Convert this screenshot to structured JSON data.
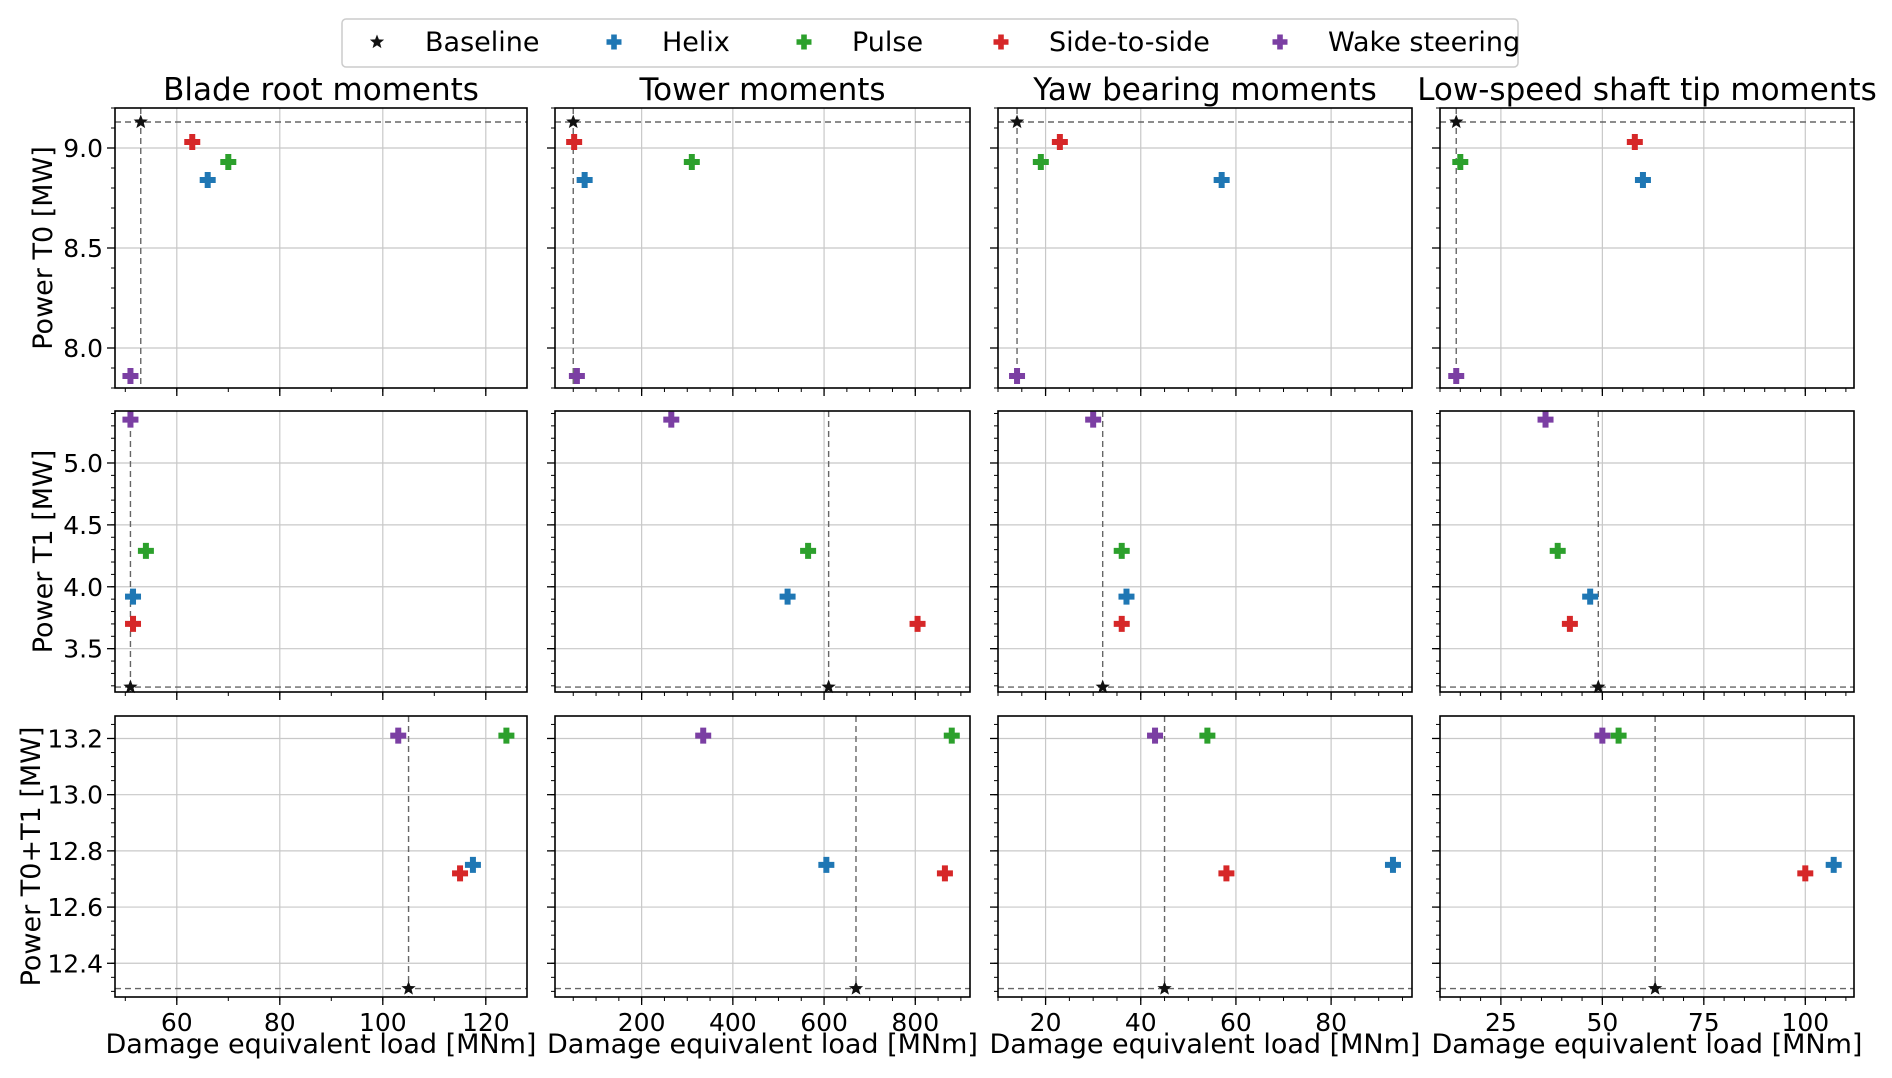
{
  "chart_data": {
    "type": "scatter",
    "legend": {
      "placement": "top-center",
      "entries": [
        {
          "name": "Baseline",
          "marker": "star",
          "color": "#111111"
        },
        {
          "name": "Helix",
          "marker": "plus",
          "color": "#1f77b4"
        },
        {
          "name": "Pulse",
          "marker": "plus",
          "color": "#2ca02c"
        },
        {
          "name": "Side-to-side",
          "marker": "plus",
          "color": "#d62728"
        },
        {
          "name": "Wake steering",
          "marker": "plus",
          "color": "#7b3fa3"
        }
      ]
    },
    "columns": [
      {
        "title": "Blade root moments",
        "xlabel": "Damage equivalent load [MNm]",
        "xlim": [
          48,
          128
        ],
        "xticks": [
          60,
          80,
          100,
          120
        ],
        "xminor": 10
      },
      {
        "title": "Tower moments",
        "xlabel": "Damage equivalent load [MNm]",
        "xlim": [
          10,
          920
        ],
        "xticks": [
          200,
          400,
          600,
          800
        ],
        "xminor": 50
      },
      {
        "title": "Yaw bearing moments",
        "xlabel": "Damage equivalent load [MNm]",
        "xlim": [
          10,
          97
        ],
        "xticks": [
          20,
          40,
          60,
          80
        ],
        "xminor": 5
      },
      {
        "title": "Low-speed shaft tip moments",
        "xlabel": "Damage equivalent load [MNm]",
        "xlim": [
          10,
          112
        ],
        "xticks": [
          25,
          50,
          75,
          100
        ],
        "xminor": 5
      }
    ],
    "rows": [
      {
        "ylabel": "Power T0 [MW]",
        "ylim": [
          7.8,
          9.2
        ],
        "yticks": [
          8.0,
          8.5,
          9.0
        ],
        "ytick_labels": [
          "8.0",
          "8.5",
          "9.0"
        ],
        "yminor": 0.1
      },
      {
        "ylabel": "Power T1 [MW]",
        "ylim": [
          3.15,
          5.42
        ],
        "yticks": [
          3.5,
          4.0,
          4.5,
          5.0
        ],
        "ytick_labels": [
          "3.5",
          "4.0",
          "4.5",
          "5.0"
        ],
        "yminor": 0.1
      },
      {
        "ylabel": "Power T0+T1 [MW]",
        "ylim": [
          12.28,
          13.28
        ],
        "yticks": [
          12.4,
          12.6,
          12.8,
          13.0,
          13.2
        ],
        "ytick_labels": [
          "12.4",
          "12.6",
          "12.8",
          "13.0",
          "13.2"
        ],
        "yminor": 0.05
      }
    ],
    "panels": [
      {
        "row": 0,
        "col": 0,
        "baseline": {
          "x": 53,
          "y": 9.13
        },
        "points": [
          {
            "series": "Helix",
            "x": 66,
            "y": 8.84
          },
          {
            "series": "Pulse",
            "x": 70,
            "y": 8.93
          },
          {
            "series": "Side-to-side",
            "x": 63,
            "y": 9.03
          },
          {
            "series": "Wake steering",
            "x": 51,
            "y": 7.86
          }
        ]
      },
      {
        "row": 0,
        "col": 1,
        "baseline": {
          "x": 50,
          "y": 9.13
        },
        "points": [
          {
            "series": "Helix",
            "x": 75,
            "y": 8.84
          },
          {
            "series": "Pulse",
            "x": 310,
            "y": 8.93
          },
          {
            "series": "Side-to-side",
            "x": 52,
            "y": 9.03
          },
          {
            "series": "Wake steering",
            "x": 58,
            "y": 7.86
          }
        ]
      },
      {
        "row": 0,
        "col": 2,
        "baseline": {
          "x": 14,
          "y": 9.13
        },
        "points": [
          {
            "series": "Helix",
            "x": 57,
            "y": 8.84
          },
          {
            "series": "Pulse",
            "x": 19,
            "y": 8.93
          },
          {
            "series": "Side-to-side",
            "x": 23,
            "y": 9.03
          },
          {
            "series": "Wake steering",
            "x": 14,
            "y": 7.86
          }
        ]
      },
      {
        "row": 0,
        "col": 3,
        "baseline": {
          "x": 14,
          "y": 9.13
        },
        "points": [
          {
            "series": "Helix",
            "x": 60,
            "y": 8.84
          },
          {
            "series": "Pulse",
            "x": 15,
            "y": 8.93
          },
          {
            "series": "Side-to-side",
            "x": 58,
            "y": 9.03
          },
          {
            "series": "Wake steering",
            "x": 14,
            "y": 7.86
          }
        ]
      },
      {
        "row": 1,
        "col": 0,
        "baseline": {
          "x": 51,
          "y": 3.19
        },
        "points": [
          {
            "series": "Helix",
            "x": 51.5,
            "y": 3.92
          },
          {
            "series": "Pulse",
            "x": 54,
            "y": 4.29
          },
          {
            "series": "Side-to-side",
            "x": 51.5,
            "y": 3.7
          },
          {
            "series": "Wake steering",
            "x": 51,
            "y": 5.35
          }
        ]
      },
      {
        "row": 1,
        "col": 1,
        "baseline": {
          "x": 610,
          "y": 3.19
        },
        "points": [
          {
            "series": "Helix",
            "x": 520,
            "y": 3.92
          },
          {
            "series": "Pulse",
            "x": 565,
            "y": 4.29
          },
          {
            "series": "Side-to-side",
            "x": 805,
            "y": 3.7
          },
          {
            "series": "Wake steering",
            "x": 265,
            "y": 5.35
          }
        ]
      },
      {
        "row": 1,
        "col": 2,
        "baseline": {
          "x": 32,
          "y": 3.19
        },
        "points": [
          {
            "series": "Helix",
            "x": 37,
            "y": 3.92
          },
          {
            "series": "Pulse",
            "x": 36,
            "y": 4.29
          },
          {
            "series": "Side-to-side",
            "x": 36,
            "y": 3.7
          },
          {
            "series": "Wake steering",
            "x": 30,
            "y": 5.35
          }
        ]
      },
      {
        "row": 1,
        "col": 3,
        "baseline": {
          "x": 49,
          "y": 3.19
        },
        "points": [
          {
            "series": "Helix",
            "x": 47,
            "y": 3.92
          },
          {
            "series": "Pulse",
            "x": 39,
            "y": 4.29
          },
          {
            "series": "Side-to-side",
            "x": 42,
            "y": 3.7
          },
          {
            "series": "Wake steering",
            "x": 36,
            "y": 5.35
          }
        ]
      },
      {
        "row": 2,
        "col": 0,
        "baseline": {
          "x": 105,
          "y": 12.31
        },
        "points": [
          {
            "series": "Helix",
            "x": 117.5,
            "y": 12.75
          },
          {
            "series": "Pulse",
            "x": 124,
            "y": 13.21
          },
          {
            "series": "Side-to-side",
            "x": 115,
            "y": 12.72
          },
          {
            "series": "Wake steering",
            "x": 103,
            "y": 13.21
          }
        ]
      },
      {
        "row": 2,
        "col": 1,
        "baseline": {
          "x": 670,
          "y": 12.31
        },
        "points": [
          {
            "series": "Helix",
            "x": 605,
            "y": 12.75
          },
          {
            "series": "Pulse",
            "x": 880,
            "y": 13.21
          },
          {
            "series": "Side-to-side",
            "x": 865,
            "y": 12.72
          },
          {
            "series": "Wake steering",
            "x": 335,
            "y": 13.21
          }
        ]
      },
      {
        "row": 2,
        "col": 2,
        "baseline": {
          "x": 45,
          "y": 12.31
        },
        "points": [
          {
            "series": "Helix",
            "x": 93,
            "y": 12.75
          },
          {
            "series": "Pulse",
            "x": 54,
            "y": 13.21
          },
          {
            "series": "Side-to-side",
            "x": 58,
            "y": 12.72
          },
          {
            "series": "Wake steering",
            "x": 43,
            "y": 13.21
          }
        ]
      },
      {
        "row": 2,
        "col": 3,
        "baseline": {
          "x": 63,
          "y": 12.31
        },
        "points": [
          {
            "series": "Helix",
            "x": 107,
            "y": 12.75
          },
          {
            "series": "Pulse",
            "x": 54,
            "y": 13.21
          },
          {
            "series": "Side-to-side",
            "x": 100,
            "y": 12.72
          },
          {
            "series": "Wake steering",
            "x": 50,
            "y": 13.21
          }
        ]
      }
    ]
  }
}
